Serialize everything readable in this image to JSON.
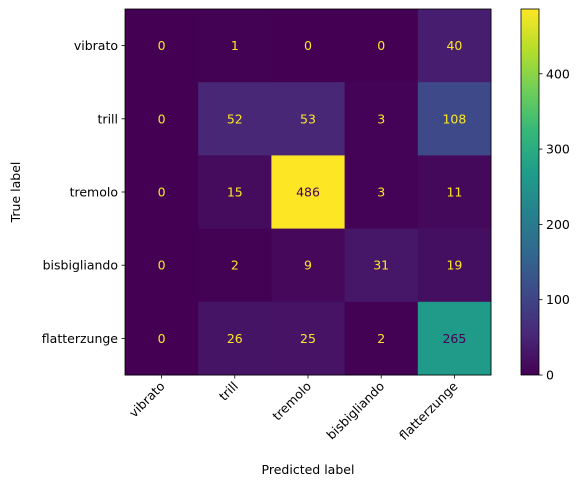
{
  "chart_data": {
    "type": "heatmap",
    "title": "",
    "xlabel": "Predicted label",
    "ylabel": "True label",
    "x_categories": [
      "vibrato",
      "trill",
      "tremolo",
      "bisbigliando",
      "flatterzunge"
    ],
    "y_categories": [
      "vibrato",
      "trill",
      "tremolo",
      "bisbigliando",
      "flatterzunge"
    ],
    "values": [
      [
        0,
        1,
        0,
        0,
        40
      ],
      [
        0,
        52,
        53,
        3,
        108
      ],
      [
        0,
        15,
        486,
        3,
        11
      ],
      [
        0,
        2,
        9,
        31,
        19
      ],
      [
        0,
        26,
        25,
        2,
        265
      ]
    ],
    "colormap": "viridis",
    "vmin": 0,
    "vmax": 486,
    "colorbar_ticks": [
      0,
      100,
      200,
      300,
      400
    ],
    "text_colors": {
      "low": "#fde725",
      "high": "#440154"
    },
    "grid": false,
    "x_tick_rotation_deg": 45
  }
}
